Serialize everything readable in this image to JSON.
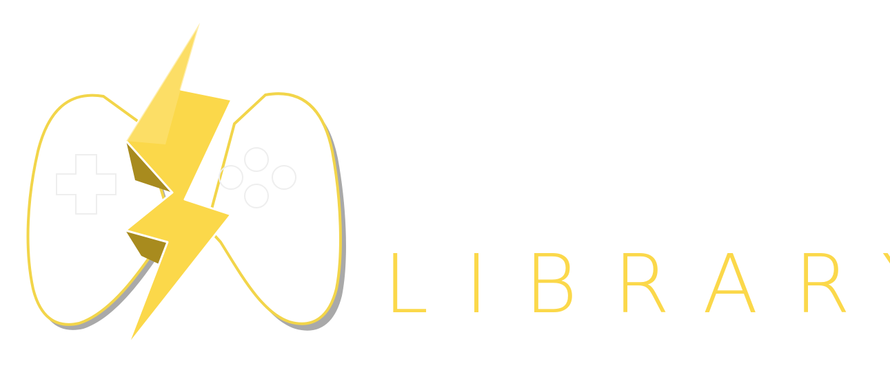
{
  "brand": {
    "wordmark": "LIBRARY",
    "logo_icon": "gamepad-lightning-icon"
  },
  "colors": {
    "brand_yellow": "#fbd84a",
    "bolt_shadow": "#a88b1e",
    "outline_yellow": "#f2d54a",
    "controller_shadow": "#9a9a9a",
    "controller_fill": "#ffffff",
    "background": "#ffffff"
  }
}
